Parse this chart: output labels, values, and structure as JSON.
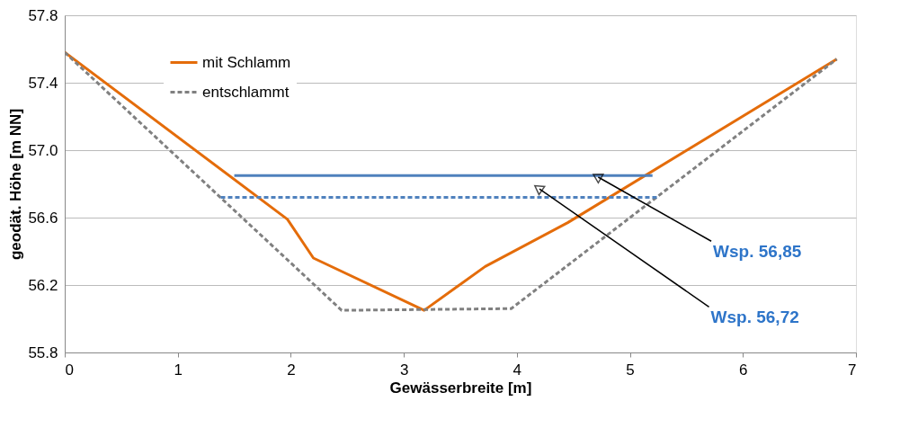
{
  "chart_data": {
    "type": "line",
    "xlabel": "Gewässerbreite [m]",
    "ylabel": "geodät. Höhe [m NN]",
    "xlim": [
      0,
      7
    ],
    "xticks": [
      0,
      1,
      2,
      3,
      4,
      5,
      6,
      7
    ],
    "ylim": [
      55.8,
      57.8
    ],
    "yticks": [
      55.8,
      56.2,
      56.6,
      {
        "value": 57,
        "label": "57.0"
      },
      57.4,
      57.8
    ],
    "grid": "y",
    "legend": "top left",
    "series": [
      {
        "name": "mit Schlamm",
        "color": "#e46c0a",
        "line_style": "solid",
        "x": [
          0,
          1.97,
          2.2,
          3.18,
          3.72,
          4.45,
          6.83
        ],
        "values": [
          57.58,
          56.59,
          56.36,
          56.05,
          56.31,
          56.57,
          57.54
        ]
      },
      {
        "name": "entschlammt",
        "color": "#808080",
        "line_style": "dashed",
        "x": [
          0,
          2.45,
          3.95,
          6.83
        ],
        "values": [
          57.58,
          56.05,
          56.06,
          57.54
        ]
      },
      {
        "color": "#4f81bd",
        "line_style": "solid",
        "x": [
          1.5,
          5.2
        ],
        "values": [
          56.85,
          56.85
        ]
      },
      {
        "color": "#4f81bd",
        "line_style": "dashed",
        "x": [
          1.38,
          5.24
        ],
        "values": [
          56.72,
          56.72
        ]
      }
    ],
    "annotations": [
      {
        "text": "Wsp. 56,85",
        "x": 4.72,
        "y": 56.84
      },
      {
        "text": "Wsp. 56,72",
        "x": 4.2,
        "y": 56.77
      }
    ]
  }
}
